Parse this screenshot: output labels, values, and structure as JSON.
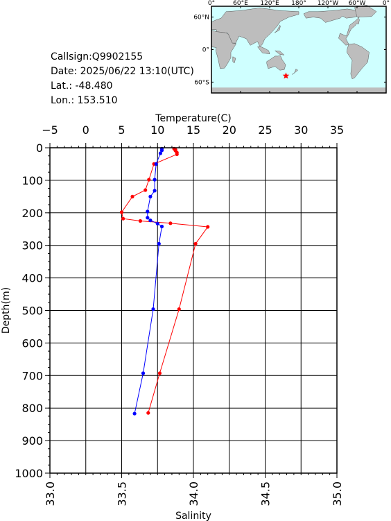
{
  "station": {
    "callsign": "Callsign:Q9902155",
    "date": "Date:  2025/06/22 13:10(UTC)",
    "lat": "Lat.:  -48.480",
    "lon": "Lon.:  153.510"
  },
  "map": {
    "lon_labels": [
      "0°",
      "60°E",
      "120°E",
      "180°",
      "120°W",
      "60°W",
      "0°"
    ],
    "lat_labels": [
      "60°N",
      "0°",
      "60°S"
    ],
    "ocean_color": "#cfffff",
    "land_color": "#bdbdbd",
    "marker": {
      "lon": 153.51,
      "lat": -48.48,
      "color": "#ff0000",
      "icon": "star-icon"
    }
  },
  "chart_data": {
    "type": "line",
    "top_axis": {
      "label": "Temperature(C)",
      "range": [
        -5,
        35
      ],
      "ticks": [
        "−5",
        "0",
        "5",
        "10",
        "15",
        "20",
        "25",
        "30",
        "35"
      ]
    },
    "bottom_axis": {
      "label": "Salinity",
      "range": [
        33.0,
        35.0
      ],
      "ticks": [
        "33.0",
        "33.5",
        "34.0",
        "34.5",
        "35.0"
      ]
    },
    "y_axis": {
      "label": "Depth(m)",
      "range": [
        0,
        1000
      ],
      "inverted": true,
      "ticks": [
        "0",
        "100",
        "200",
        "300",
        "400",
        "500",
        "600",
        "700",
        "800",
        "900",
        "1000"
      ]
    },
    "grid": true,
    "series": [
      {
        "quantity": "temperature",
        "color": "#ff0000",
        "axis": "top",
        "points": [
          [
            12.3,
            3
          ],
          [
            12.5,
            6
          ],
          [
            12.5,
            9
          ],
          [
            12.7,
            15
          ],
          [
            12.7,
            20
          ],
          [
            9.5,
            50
          ],
          [
            8.8,
            98
          ],
          [
            8.3,
            130
          ],
          [
            6.5,
            150
          ],
          [
            5.0,
            198
          ],
          [
            5.2,
            218
          ],
          [
            7.6,
            225
          ],
          [
            11.8,
            232
          ],
          [
            17.0,
            243
          ],
          [
            15.3,
            295
          ],
          [
            13.0,
            496
          ],
          [
            10.3,
            693
          ],
          [
            8.7,
            815
          ]
        ]
      },
      {
        "quantity": "salinity",
        "color": "#0000ff",
        "axis": "bottom",
        "points": [
          [
            33.78,
            3
          ],
          [
            33.78,
            8
          ],
          [
            33.77,
            17
          ],
          [
            33.74,
            50
          ],
          [
            33.73,
            98
          ],
          [
            33.73,
            132
          ],
          [
            33.7,
            150
          ],
          [
            33.68,
            196
          ],
          [
            33.68,
            215
          ],
          [
            33.7,
            223
          ],
          [
            33.75,
            233
          ],
          [
            33.78,
            242
          ],
          [
            33.76,
            295
          ],
          [
            33.72,
            496
          ],
          [
            33.65,
            693
          ],
          [
            33.59,
            817
          ]
        ]
      }
    ]
  }
}
